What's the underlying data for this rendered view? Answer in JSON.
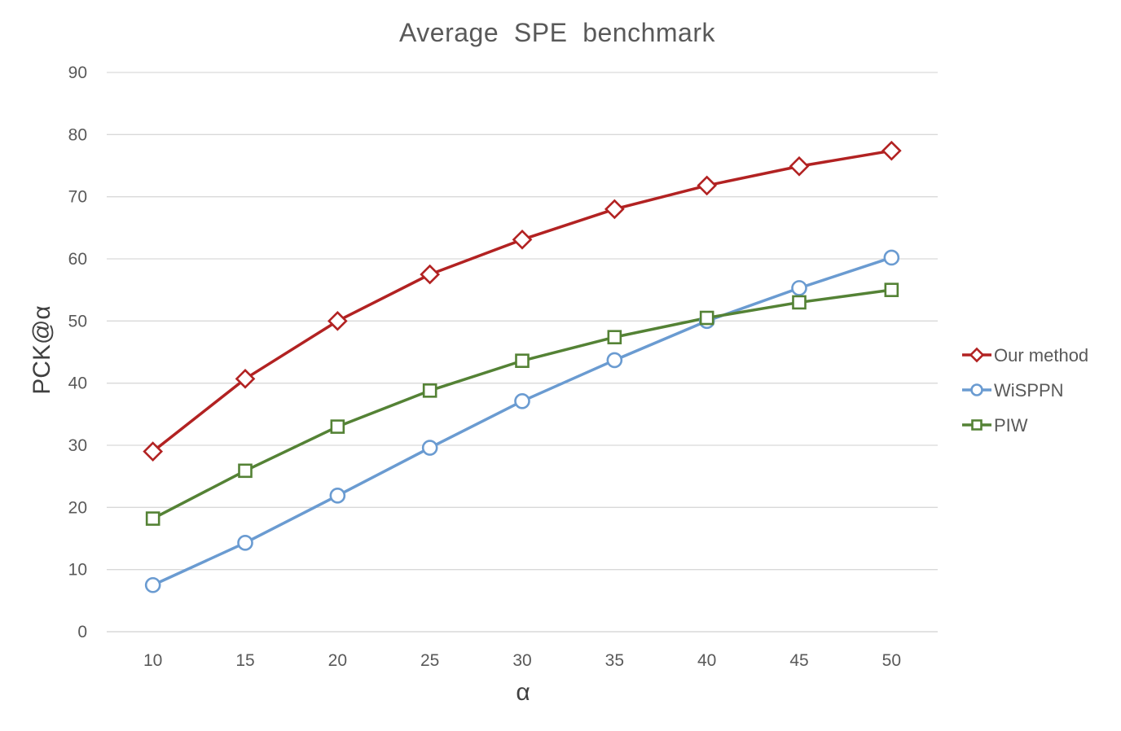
{
  "chart_data": {
    "type": "line",
    "title": "Average  SPE  benchmark",
    "xlabel": "α",
    "ylabel": "PCK@α",
    "categories": [
      "10",
      "15",
      "20",
      "25",
      "30",
      "35",
      "40",
      "45",
      "50"
    ],
    "ylim": [
      0,
      90
    ],
    "yticks": [
      0,
      10,
      20,
      30,
      40,
      50,
      60,
      70,
      80,
      90
    ],
    "grid": true,
    "legend_position": "right",
    "series": [
      {
        "name": "Our method",
        "color": "#b22222",
        "marker": "diamond",
        "values": [
          29,
          40.7,
          50,
          57.5,
          63.1,
          68,
          71.8,
          74.9,
          77.4
        ]
      },
      {
        "name": "WiSPPN",
        "color": "#6a9bd1",
        "marker": "circle",
        "values": [
          7.5,
          14.3,
          21.9,
          29.6,
          37.1,
          43.7,
          50,
          55.3,
          60.2
        ]
      },
      {
        "name": "PIW",
        "color": "#548235",
        "marker": "square",
        "values": [
          18.2,
          25.9,
          33,
          38.8,
          43.6,
          47.4,
          50.5,
          53,
          55
        ]
      }
    ]
  }
}
